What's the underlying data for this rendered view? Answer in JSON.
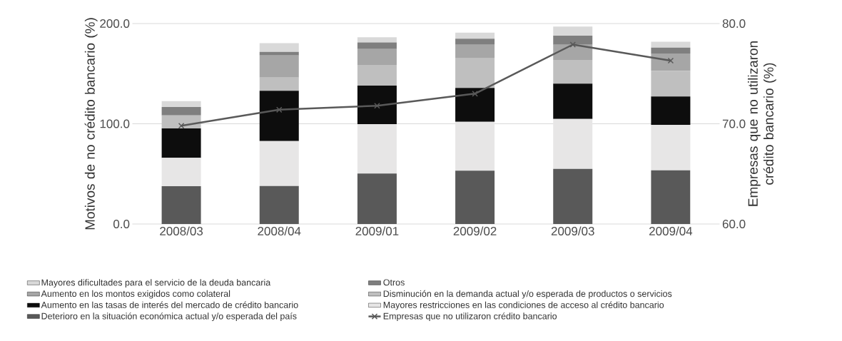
{
  "chart_data": {
    "type": "bar",
    "stacked": true,
    "ylabel": "Motivos de no crédito bancario (%)",
    "y2label": "Empresas que no utilizaron crédito bancario (%)",
    "categories": [
      "2008/03",
      "2008/04",
      "2009/01",
      "2009/02",
      "2009/03",
      "2009/04"
    ],
    "series": [
      {
        "name": "Deterioro en la situación económica actual y/o esperada del país",
        "color": "#595959",
        "values": [
          37.7,
          37.9,
          50.3,
          53.2,
          55.0,
          53.6
        ]
      },
      {
        "name": "Mayores restricciones en las condiciones de acceso al crédito bancario",
        "color": "#e7e6e6",
        "values": [
          28.3,
          44.9,
          49.3,
          48.8,
          49.8,
          45.3
        ]
      },
      {
        "name": "Aumento en las tasas de interés del mercado de crédito bancario",
        "color": "#0d0d0d",
        "values": [
          29.4,
          50.1,
          38.4,
          33.7,
          35.2,
          28.3
        ]
      },
      {
        "name": "Disminución en la demanda actual y/o esperada de productos o servicios",
        "color": "#bfbfbf",
        "values": [
          13.0,
          13.2,
          20.7,
          29.6,
          23.7,
          25.6
        ]
      },
      {
        "name": "Aumento en los montos exigidos como colateral",
        "color": "#a6a6a6",
        "values": [
          0,
          22.0,
          15.8,
          13.6,
          15.2,
          17.3
        ]
      },
      {
        "name": "Otros",
        "color": "#7f7f7f",
        "values": [
          8.3,
          3.6,
          6.6,
          6.0,
          9.0,
          5.9
        ]
      },
      {
        "name": "Mayores dificultades para el servicio de la deuda bancaria",
        "color": "#d9d9d9",
        "values": [
          5.9,
          8.8,
          5.2,
          6.1,
          9.0,
          5.9
        ]
      },
      {
        "name": "Empresas que no utilizaron crédito bancario",
        "type": "line",
        "axis": "y2",
        "color": "#595959",
        "values": [
          69.8,
          71.4,
          71.8,
          73.0,
          77.9,
          76.3
        ]
      }
    ],
    "ylim": [
      0,
      200
    ],
    "yticks": [
      {
        "value": 0,
        "label": "0.0"
      },
      {
        "value": 100,
        "label": "100.0"
      },
      {
        "value": 200,
        "label": "200.0"
      }
    ],
    "y2lim": [
      60,
      80
    ],
    "y2ticks": [
      {
        "value": 60,
        "label": "60.0"
      },
      {
        "value": 70,
        "label": "70.0"
      },
      {
        "value": 80,
        "label": "80.0"
      }
    ],
    "grid": "y",
    "legend": "bottom",
    "marker": "cross"
  }
}
